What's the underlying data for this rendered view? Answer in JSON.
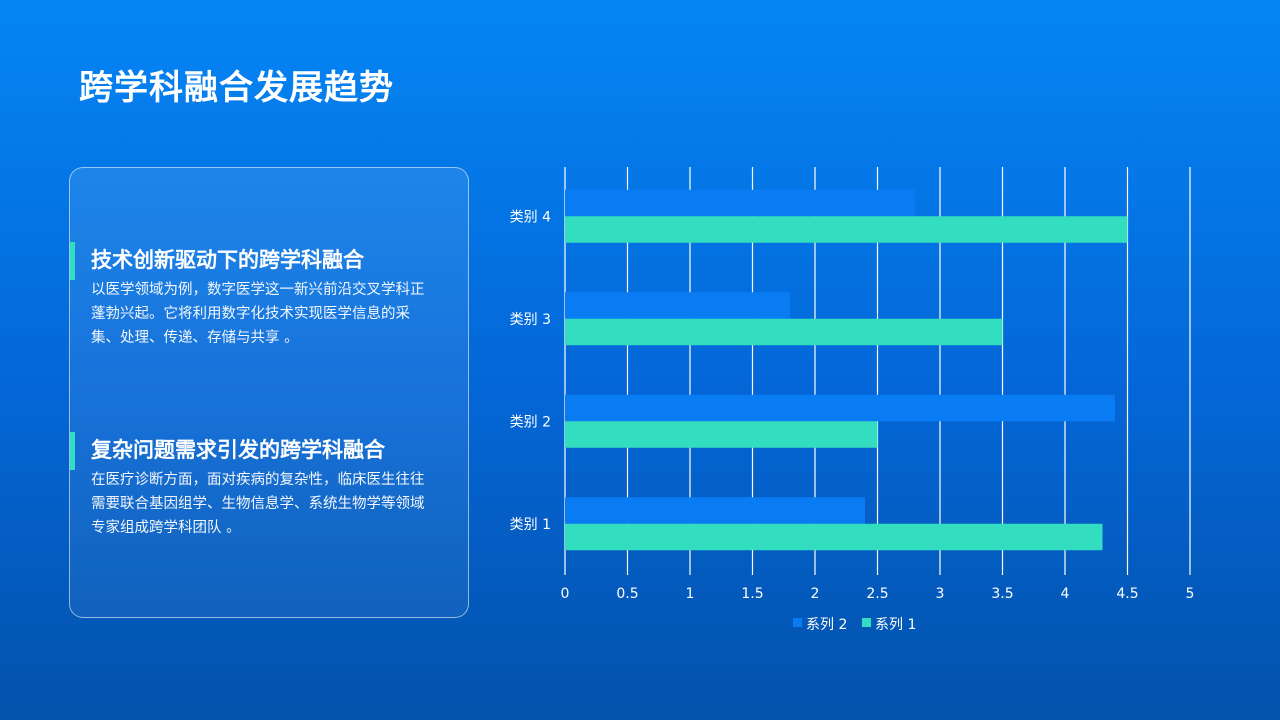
{
  "slide": {
    "title": "跨学科融合发展趋势"
  },
  "card": {
    "sections": [
      {
        "heading": "技术创新驱动下的跨学科融合",
        "body": "以医学领域为例，数字医学这一新兴前沿交叉学科正蓬勃兴起。它将利用数字化技术实现医学信息的采集、处理、传递、存储与共享 。"
      },
      {
        "heading": "复杂问题需求引发的跨学科融合",
        "body": "在医疗诊断方面，面对疾病的复杂性，临床医生往往需要联合基因组学、生物信息学、系统生物学等领域专家组成跨学科团队 。"
      }
    ]
  },
  "chart_data": {
    "type": "bar",
    "orientation": "horizontal",
    "title": "",
    "xlabel": "",
    "ylabel": "",
    "categories": [
      "类别 1",
      "类别 2",
      "类别 3",
      "类别 4"
    ],
    "series": [
      {
        "name": "系列 2",
        "values": [
          2.4,
          4.4,
          1.8,
          2.8
        ],
        "color": "#0a7cf3"
      },
      {
        "name": "系列 1",
        "values": [
          4.3,
          2.5,
          3.5,
          4.5
        ],
        "color": "#33ddc0"
      }
    ],
    "xlim": [
      0,
      5
    ],
    "x_ticks": [
      "0",
      "0.5",
      "1",
      "1.5",
      "2",
      "2.5",
      "3",
      "3.5",
      "4",
      "4.5",
      "5"
    ],
    "gridlines": "vertical",
    "legend_position": "bottom"
  }
}
